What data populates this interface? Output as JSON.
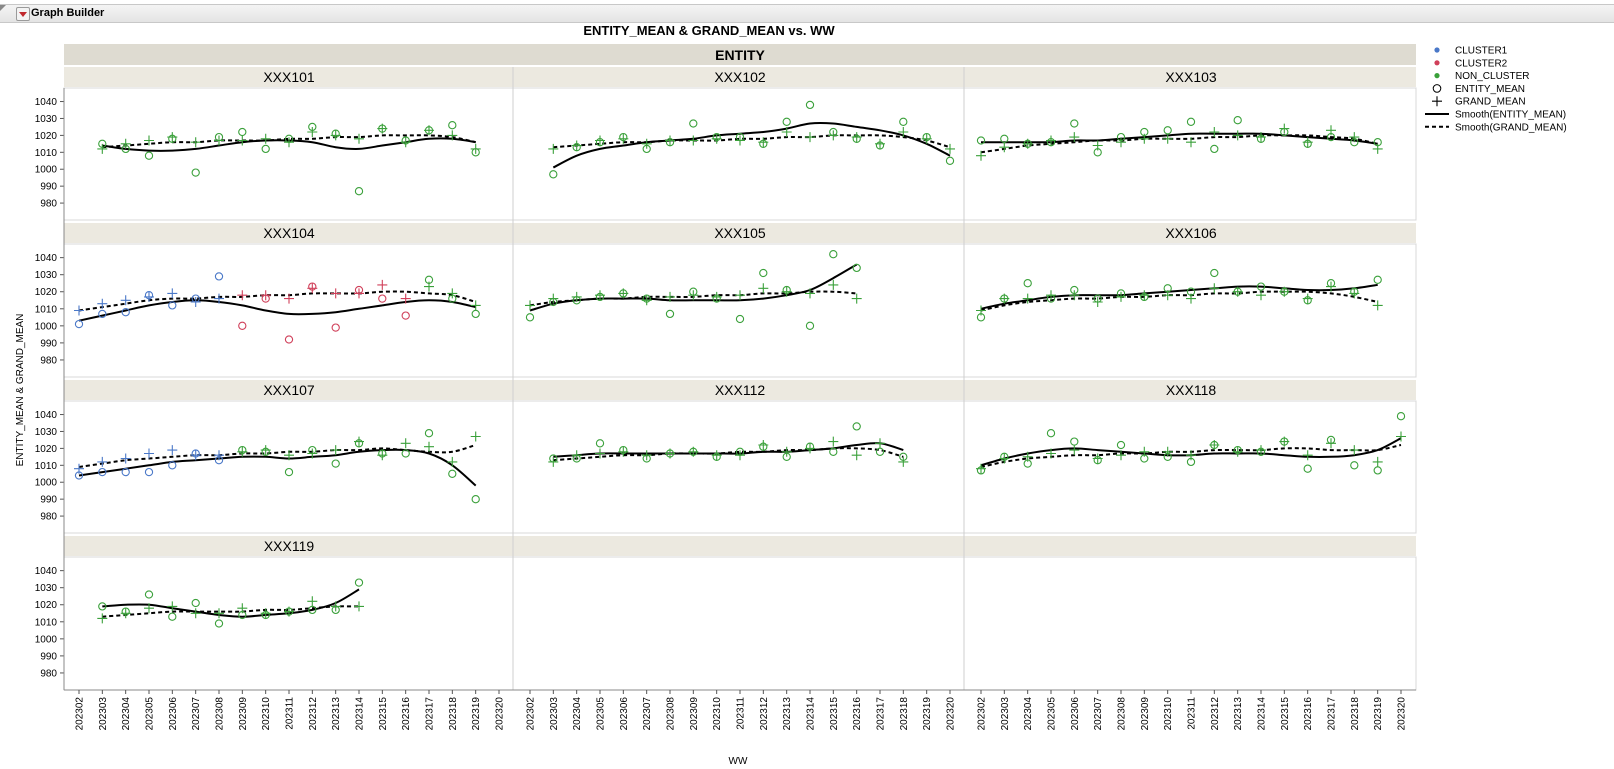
{
  "app": {
    "title": "Graph Builder"
  },
  "chart_data": {
    "type": "scatter",
    "title": "ENTITY_MEAN & GRAND_MEAN vs. WW",
    "facet_label": "ENTITY",
    "xlabel": "WW",
    "ylabel": "ENTITY_MEAN & GRAND_MEAN",
    "categories": [
      "202302",
      "202303",
      "202304",
      "202305",
      "202306",
      "202307",
      "202308",
      "202309",
      "202310",
      "202311",
      "202312",
      "202313",
      "202314",
      "202315",
      "202316",
      "202317",
      "202318",
      "202319",
      "202320"
    ],
    "ylim": [
      970,
      1048
    ],
    "yticks": [
      980,
      990,
      1000,
      1010,
      1020,
      1030,
      1040
    ],
    "legend_position": "right",
    "legend": [
      {
        "label": "CLUSTER1",
        "kind": "dot",
        "color": "#4a78c8"
      },
      {
        "label": "CLUSTER2",
        "kind": "dot",
        "color": "#d0405a"
      },
      {
        "label": "NON_CLUSTER",
        "kind": "dot",
        "color": "#3aa03a"
      },
      {
        "label": "ENTITY_MEAN",
        "kind": "circle",
        "color": "#000000"
      },
      {
        "label": "GRAND_MEAN",
        "kind": "plus",
        "color": "#000000"
      },
      {
        "label": "Smooth(ENTITY_MEAN)",
        "kind": "solid",
        "color": "#000000"
      },
      {
        "label": "Smooth(GRAND_MEAN)",
        "kind": "dashed",
        "color": "#000000"
      }
    ],
    "colors": {
      "CLUSTER1": "#4a78c8",
      "CLUSTER2": "#d0405a",
      "NON_CLUSTER": "#3aa03a"
    },
    "panels": [
      {
        "name": "XXX101",
        "start": 1,
        "entity": [
          1015,
          1012,
          1008,
          1018,
          998,
          1019,
          1022,
          1012,
          1018,
          1025,
          1021,
          987,
          1024,
          1017,
          1023,
          1026,
          1010
        ],
        "grand": [
          1012,
          1015,
          1017,
          1019,
          1016,
          1017,
          1017,
          1018,
          1016,
          1022,
          1020,
          1018,
          1024,
          1016,
          1023,
          1020,
          1012
        ],
        "groups": [
          "NON_CLUSTER",
          "NON_CLUSTER",
          "NON_CLUSTER",
          "NON_CLUSTER",
          "NON_CLUSTER",
          "NON_CLUSTER",
          "NON_CLUSTER",
          "NON_CLUSTER",
          "NON_CLUSTER",
          "NON_CLUSTER",
          "NON_CLUSTER",
          "NON_CLUSTER",
          "NON_CLUSTER",
          "NON_CLUSTER",
          "NON_CLUSTER",
          "NON_CLUSTER",
          "NON_CLUSTER"
        ],
        "smooth_entity": [
          1014,
          1012,
          1011,
          1011,
          1012,
          1014,
          1016,
          1017,
          1017,
          1016,
          1013,
          1012,
          1014,
          1016,
          1018,
          1018,
          1016
        ],
        "smooth_grand": [
          1013,
          1014,
          1015,
          1016,
          1016,
          1017,
          1017,
          1017,
          1018,
          1018,
          1019,
          1019,
          1020,
          1020,
          1020,
          1019,
          1016
        ]
      },
      {
        "name": "XXX102",
        "start": 1,
        "entity": [
          997,
          1013,
          1016,
          1019,
          1012,
          1016,
          1027,
          1019,
          1019,
          1015,
          1028,
          1038,
          1022,
          1018,
          1014,
          1028,
          1019,
          1005
        ],
        "grand": [
          1012,
          1014,
          1017,
          1018,
          1015,
          1017,
          1017,
          1018,
          1017,
          1016,
          1022,
          1019,
          1020,
          1019,
          1015,
          1022,
          1018,
          1012
        ],
        "groups": [
          "NON_CLUSTER",
          "NON_CLUSTER",
          "NON_CLUSTER",
          "NON_CLUSTER",
          "NON_CLUSTER",
          "NON_CLUSTER",
          "NON_CLUSTER",
          "NON_CLUSTER",
          "NON_CLUSTER",
          "NON_CLUSTER",
          "NON_CLUSTER",
          "NON_CLUSTER",
          "NON_CLUSTER",
          "NON_CLUSTER",
          "NON_CLUSTER",
          "NON_CLUSTER",
          "NON_CLUSTER",
          "NON_CLUSTER"
        ],
        "smooth_entity": [
          1001,
          1008,
          1012,
          1014,
          1016,
          1017,
          1018,
          1020,
          1021,
          1022,
          1024,
          1027,
          1027,
          1025,
          1023,
          1020,
          1015,
          1008
        ],
        "smooth_grand": [
          1013,
          1014,
          1015,
          1016,
          1016,
          1017,
          1017,
          1017,
          1018,
          1018,
          1019,
          1019,
          1020,
          1020,
          1020,
          1019,
          1017,
          1013
        ]
      },
      {
        "name": "XXX103",
        "start": 0,
        "entity": [
          1017,
          1018,
          1015,
          1016,
          1027,
          1010,
          1019,
          1022,
          1023,
          1028,
          1012,
          1029,
          1018,
          1022,
          1015,
          1019,
          1016,
          1016
        ],
        "grand": [
          1008,
          1013,
          1015,
          1017,
          1019,
          1014,
          1016,
          1018,
          1018,
          1016,
          1022,
          1020,
          1019,
          1024,
          1016,
          1023,
          1019,
          1012
        ],
        "groups": [
          "NON_CLUSTER",
          "NON_CLUSTER",
          "NON_CLUSTER",
          "NON_CLUSTER",
          "NON_CLUSTER",
          "NON_CLUSTER",
          "NON_CLUSTER",
          "NON_CLUSTER",
          "NON_CLUSTER",
          "NON_CLUSTER",
          "NON_CLUSTER",
          "NON_CLUSTER",
          "NON_CLUSTER",
          "NON_CLUSTER",
          "NON_CLUSTER",
          "NON_CLUSTER",
          "NON_CLUSTER",
          "NON_CLUSTER"
        ],
        "smooth_entity": [
          1016,
          1016,
          1016,
          1016,
          1017,
          1017,
          1018,
          1019,
          1020,
          1021,
          1021,
          1021,
          1021,
          1020,
          1019,
          1018,
          1017,
          1015
        ],
        "smooth_grand": [
          1010,
          1012,
          1014,
          1015,
          1016,
          1017,
          1017,
          1018,
          1018,
          1018,
          1019,
          1019,
          1020,
          1020,
          1020,
          1019,
          1018,
          1015
        ]
      },
      {
        "name": "XXX104",
        "start": 0,
        "entity": [
          1001,
          1007,
          1008,
          1018,
          1012,
          1016,
          1029,
          1000,
          1016,
          992,
          1023,
          999,
          1021,
          1016,
          1006,
          1027,
          1016,
          1007
        ],
        "grand": [
          1009,
          1013,
          1015,
          1017,
          1019,
          1014,
          1016,
          1018,
          1018,
          1016,
          1022,
          1019,
          1019,
          1024,
          1016,
          1023,
          1019,
          1012
        ],
        "groups": [
          "CLUSTER1",
          "CLUSTER1",
          "CLUSTER1",
          "CLUSTER1",
          "CLUSTER1",
          "CLUSTER1",
          "CLUSTER1",
          "CLUSTER2",
          "CLUSTER2",
          "CLUSTER2",
          "CLUSTER2",
          "CLUSTER2",
          "CLUSTER2",
          "CLUSTER2",
          "CLUSTER2",
          "NON_CLUSTER",
          "NON_CLUSTER",
          "NON_CLUSTER"
        ],
        "smooth_entity": [
          1003,
          1006,
          1009,
          1012,
          1014,
          1015,
          1014,
          1012,
          1009,
          1007,
          1007,
          1008,
          1010,
          1012,
          1014,
          1015,
          1014,
          1011
        ],
        "smooth_grand": [
          1009,
          1011,
          1013,
          1015,
          1016,
          1016,
          1017,
          1017,
          1018,
          1018,
          1019,
          1019,
          1019,
          1020,
          1020,
          1019,
          1018,
          1014
        ]
      },
      {
        "name": "XXX105",
        "start": 0,
        "entity": [
          1005,
          1014,
          1015,
          1017,
          1019,
          1016,
          1007,
          1020,
          1016,
          1004,
          1031,
          1021,
          1000,
          1042,
          1034
        ],
        "grand": [
          1012,
          1016,
          1017,
          1018,
          1019,
          1015,
          1017,
          1018,
          1017,
          1018,
          1022,
          1020,
          1019,
          1024,
          1016
        ],
        "groups": [
          "NON_CLUSTER",
          "NON_CLUSTER",
          "NON_CLUSTER",
          "NON_CLUSTER",
          "NON_CLUSTER",
          "NON_CLUSTER",
          "NON_CLUSTER",
          "NON_CLUSTER",
          "NON_CLUSTER",
          "NON_CLUSTER",
          "NON_CLUSTER",
          "NON_CLUSTER",
          "NON_CLUSTER",
          "NON_CLUSTER",
          "NON_CLUSTER"
        ],
        "smooth_entity": [
          1009,
          1013,
          1015,
          1016,
          1016,
          1016,
          1015,
          1015,
          1015,
          1015,
          1016,
          1018,
          1021,
          1028,
          1036
        ],
        "smooth_grand": [
          1012,
          1014,
          1015,
          1016,
          1016,
          1017,
          1017,
          1017,
          1018,
          1018,
          1019,
          1019,
          1020,
          1020,
          1019
        ]
      },
      {
        "name": "XXX106",
        "start": 0,
        "entity": [
          1005,
          1016,
          1025,
          1016,
          1021,
          1016,
          1019,
          1017,
          1022,
          1020,
          1031,
          1020,
          1023,
          1020,
          1015,
          1025,
          1020,
          1027
        ],
        "grand": [
          1009,
          1016,
          1016,
          1018,
          1018,
          1014,
          1017,
          1018,
          1018,
          1016,
          1022,
          1020,
          1018,
          1020,
          1016,
          1023,
          1019,
          1012
        ],
        "groups": [
          "NON_CLUSTER",
          "NON_CLUSTER",
          "NON_CLUSTER",
          "NON_CLUSTER",
          "NON_CLUSTER",
          "NON_CLUSTER",
          "NON_CLUSTER",
          "NON_CLUSTER",
          "NON_CLUSTER",
          "NON_CLUSTER",
          "NON_CLUSTER",
          "NON_CLUSTER",
          "NON_CLUSTER",
          "NON_CLUSTER",
          "NON_CLUSTER",
          "NON_CLUSTER",
          "NON_CLUSTER",
          "NON_CLUSTER"
        ],
        "smooth_entity": [
          1010,
          1013,
          1015,
          1017,
          1018,
          1018,
          1018,
          1019,
          1020,
          1021,
          1022,
          1023,
          1023,
          1022,
          1021,
          1021,
          1022,
          1024
        ],
        "smooth_grand": [
          1009,
          1012,
          1014,
          1015,
          1016,
          1016,
          1017,
          1017,
          1018,
          1018,
          1019,
          1019,
          1020,
          1020,
          1020,
          1019,
          1017,
          1014
        ]
      },
      {
        "name": "XXX107",
        "start": 0,
        "entity": [
          1004,
          1006,
          1006,
          1006,
          1010,
          1017,
          1013,
          1019,
          1018,
          1006,
          1019,
          1011,
          1023,
          1017,
          1017,
          1029,
          1005,
          990
        ],
        "grand": [
          1008,
          1012,
          1014,
          1017,
          1019,
          1016,
          1016,
          1018,
          1019,
          1016,
          1017,
          1019,
          1024,
          1016,
          1023,
          1021,
          1012,
          1027
        ],
        "groups": [
          "CLUSTER1",
          "CLUSTER1",
          "CLUSTER1",
          "CLUSTER1",
          "CLUSTER1",
          "CLUSTER1",
          "CLUSTER1",
          "NON_CLUSTER",
          "NON_CLUSTER",
          "NON_CLUSTER",
          "NON_CLUSTER",
          "NON_CLUSTER",
          "NON_CLUSTER",
          "NON_CLUSTER",
          "NON_CLUSTER",
          "NON_CLUSTER",
          "NON_CLUSTER",
          "NON_CLUSTER"
        ],
        "smooth_entity": [
          1004,
          1006,
          1008,
          1010,
          1012,
          1013,
          1014,
          1015,
          1015,
          1014,
          1015,
          1016,
          1018,
          1019,
          1019,
          1017,
          1010,
          998
        ],
        "smooth_grand": [
          1009,
          1011,
          1013,
          1014,
          1015,
          1016,
          1016,
          1017,
          1017,
          1018,
          1018,
          1019,
          1019,
          1020,
          1019,
          1018,
          1018,
          1022
        ]
      },
      {
        "name": "XXX112",
        "start": 1,
        "entity": [
          1014,
          1014,
          1023,
          1019,
          1014,
          1017,
          1018,
          1015,
          1018,
          1021,
          1015,
          1021,
          1018,
          1033,
          1018,
          1015
        ],
        "grand": [
          1012,
          1016,
          1017,
          1018,
          1016,
          1017,
          1018,
          1016,
          1016,
          1022,
          1018,
          1020,
          1024,
          1016,
          1023,
          1012
        ],
        "groups": [
          "NON_CLUSTER",
          "NON_CLUSTER",
          "NON_CLUSTER",
          "NON_CLUSTER",
          "NON_CLUSTER",
          "NON_CLUSTER",
          "NON_CLUSTER",
          "NON_CLUSTER",
          "NON_CLUSTER",
          "NON_CLUSTER",
          "NON_CLUSTER",
          "NON_CLUSTER",
          "NON_CLUSTER",
          "NON_CLUSTER",
          "NON_CLUSTER",
          "NON_CLUSTER"
        ],
        "smooth_entity": [
          1015,
          1016,
          1017,
          1017,
          1017,
          1017,
          1017,
          1017,
          1017,
          1018,
          1018,
          1019,
          1020,
          1022,
          1023,
          1019
        ],
        "smooth_grand": [
          1013,
          1014,
          1015,
          1016,
          1016,
          1017,
          1017,
          1017,
          1018,
          1018,
          1019,
          1019,
          1020,
          1020,
          1019,
          1015
        ]
      },
      {
        "name": "XXX118",
        "start": 0,
        "entity": [
          1007,
          1015,
          1011,
          1029,
          1024,
          1013,
          1022,
          1014,
          1015,
          1012,
          1022,
          1019,
          1018,
          1024,
          1008,
          1025,
          1010,
          1007,
          1039
        ],
        "grand": [
          1008,
          1014,
          1015,
          1017,
          1019,
          1014,
          1016,
          1018,
          1018,
          1016,
          1022,
          1018,
          1019,
          1024,
          1016,
          1023,
          1019,
          1012,
          1027
        ],
        "groups": [
          "NON_CLUSTER",
          "NON_CLUSTER",
          "NON_CLUSTER",
          "NON_CLUSTER",
          "NON_CLUSTER",
          "NON_CLUSTER",
          "NON_CLUSTER",
          "NON_CLUSTER",
          "NON_CLUSTER",
          "NON_CLUSTER",
          "NON_CLUSTER",
          "NON_CLUSTER",
          "NON_CLUSTER",
          "NON_CLUSTER",
          "NON_CLUSTER",
          "NON_CLUSTER",
          "NON_CLUSTER",
          "NON_CLUSTER",
          "NON_CLUSTER"
        ],
        "smooth_entity": [
          1010,
          1014,
          1017,
          1019,
          1020,
          1019,
          1018,
          1017,
          1016,
          1016,
          1017,
          1017,
          1017,
          1016,
          1015,
          1015,
          1016,
          1019,
          1026
        ],
        "smooth_grand": [
          1009,
          1012,
          1014,
          1015,
          1016,
          1016,
          1017,
          1017,
          1018,
          1018,
          1019,
          1019,
          1019,
          1020,
          1020,
          1019,
          1019,
          1019,
          1022
        ]
      },
      {
        "name": "XXX119",
        "start": 1,
        "entity": [
          1019,
          1016,
          1026,
          1013,
          1021,
          1009,
          1014,
          1014,
          1016,
          1017,
          1017,
          1033
        ],
        "grand": [
          1012,
          1015,
          1018,
          1019,
          1015,
          1015,
          1018,
          1015,
          1016,
          1022,
          1019,
          1019
        ],
        "groups": [
          "NON_CLUSTER",
          "NON_CLUSTER",
          "NON_CLUSTER",
          "NON_CLUSTER",
          "NON_CLUSTER",
          "NON_CLUSTER",
          "NON_CLUSTER",
          "NON_CLUSTER",
          "NON_CLUSTER",
          "NON_CLUSTER",
          "NON_CLUSTER",
          "NON_CLUSTER"
        ],
        "smooth_entity": [
          1019,
          1020,
          1020,
          1018,
          1016,
          1014,
          1013,
          1014,
          1015,
          1017,
          1021,
          1029
        ],
        "smooth_grand": [
          1013,
          1014,
          1015,
          1016,
          1016,
          1016,
          1016,
          1017,
          1017,
          1018,
          1019,
          1019
        ]
      },
      {
        "name": "",
        "start": 0,
        "entity": [],
        "grand": [],
        "groups": [],
        "smooth_entity": [],
        "smooth_grand": []
      },
      {
        "name": "",
        "start": 0,
        "entity": [],
        "grand": [],
        "groups": [],
        "smooth_entity": [],
        "smooth_grand": []
      }
    ]
  }
}
